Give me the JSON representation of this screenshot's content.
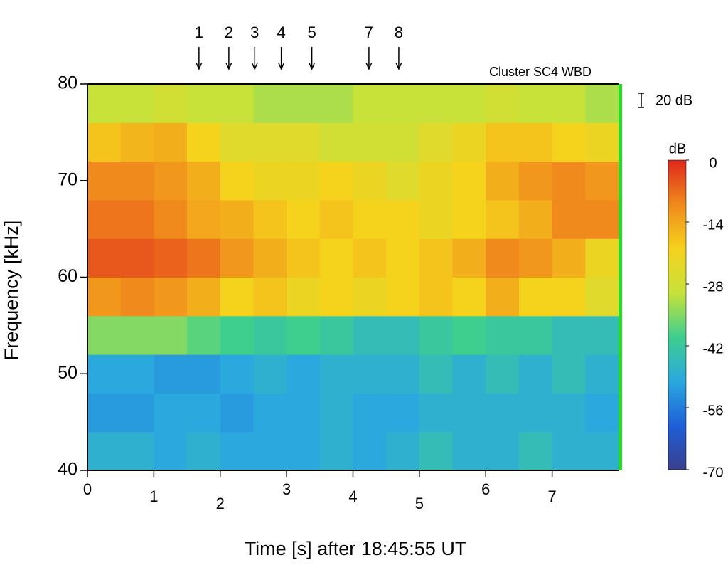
{
  "chart_data": {
    "type": "heatmap",
    "title": "Cluster SC4 WBD",
    "xlabel": "Time [s] after 18:45:55 UT",
    "ylabel": "Frequency [kHz]",
    "xlim": [
      0,
      8
    ],
    "xticks": [
      0,
      1,
      2,
      3,
      4,
      5,
      6,
      7
    ],
    "ylim": [
      40,
      80
    ],
    "yticks": [
      40,
      50,
      60,
      70,
      80
    ],
    "xbins": [
      0,
      0.5,
      1,
      1.5,
      2,
      2.5,
      3,
      3.5,
      4,
      4.5,
      5,
      5.5,
      6,
      6.5,
      7,
      7.5,
      8
    ],
    "ybins": [
      40,
      44,
      48,
      52,
      56,
      60,
      64,
      68,
      72,
      76,
      80
    ],
    "z": [
      [
        -48,
        -48,
        -50,
        -48,
        -50,
        -50,
        -50,
        -48,
        -50,
        -48,
        -45,
        -48,
        -48,
        -45,
        -48,
        -48
      ],
      [
        -52,
        -52,
        -50,
        -50,
        -52,
        -50,
        -50,
        -48,
        -50,
        -50,
        -48,
        -48,
        -48,
        -48,
        -48,
        -50
      ],
      [
        -50,
        -50,
        -52,
        -52,
        -50,
        -48,
        -50,
        -48,
        -48,
        -48,
        -45,
        -48,
        -45,
        -48,
        -45,
        -48
      ],
      [
        -35,
        -35,
        -35,
        -38,
        -40,
        -42,
        -40,
        -42,
        -45,
        -45,
        -42,
        -40,
        -42,
        -42,
        -45,
        -45
      ],
      [
        -12,
        -10,
        -12,
        -15,
        -20,
        -18,
        -22,
        -20,
        -22,
        -20,
        -18,
        -20,
        -15,
        -20,
        -20,
        -25
      ],
      [
        -5,
        -5,
        -6,
        -8,
        -12,
        -15,
        -18,
        -20,
        -18,
        -20,
        -18,
        -15,
        -10,
        -12,
        -15,
        -22
      ],
      [
        -8,
        -8,
        -10,
        -14,
        -15,
        -18,
        -20,
        -18,
        -20,
        -20,
        -22,
        -20,
        -18,
        -15,
        -10,
        -10
      ],
      [
        -10,
        -10,
        -12,
        -15,
        -20,
        -22,
        -22,
        -20,
        -22,
        -25,
        -22,
        -20,
        -15,
        -12,
        -10,
        -12
      ],
      [
        -18,
        -16,
        -15,
        -20,
        -25,
        -25,
        -25,
        -28,
        -28,
        -28,
        -25,
        -22,
        -18,
        -18,
        -20,
        -22
      ],
      [
        -30,
        -30,
        -28,
        -30,
        -30,
        -32,
        -32,
        -32,
        -30,
        -30,
        -30,
        -30,
        -28,
        -30,
        -30,
        -32
      ]
    ],
    "colormap": [
      "#3a3f8f",
      "#1e5fd8",
      "#2aa9df",
      "#3ecf8e",
      "#c8e23a",
      "#f5d21c",
      "#f08a1c",
      "#e0261c"
    ],
    "clim": [
      -70,
      0
    ],
    "cticks": [
      0,
      -14,
      -28,
      -42,
      -56,
      -70
    ],
    "colorbar_label": "dB",
    "scale_bar": "20 dB",
    "markers": [
      {
        "label": "1",
        "x": 1.68
      },
      {
        "label": "2",
        "x": 2.13
      },
      {
        "label": "3",
        "x": 2.52
      },
      {
        "label": "4",
        "x": 2.92
      },
      {
        "label": "5",
        "x": 3.38
      },
      {
        "label": "7",
        "x": 4.24
      },
      {
        "label": "8",
        "x": 4.69
      }
    ]
  }
}
